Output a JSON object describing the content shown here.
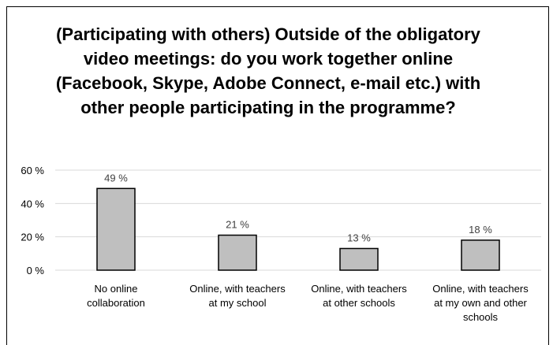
{
  "chart_data": {
    "type": "bar",
    "title": "(Participating with others) Outside of the obligatory video meetings: do you work together online (Facebook, Skype, Adobe Connect, e-mail etc.) with other people participating in the programme?",
    "categories": [
      [
        "No online",
        "collaboration"
      ],
      [
        "Online, with teachers",
        "at my school"
      ],
      [
        "Online, with teachers",
        "at other schools"
      ],
      [
        "Online, with teachers",
        "at my own and other",
        "schools"
      ]
    ],
    "values": [
      49,
      21,
      13,
      18
    ],
    "data_labels": [
      "49 %",
      "21 %",
      "13 %",
      "18 %"
    ],
    "ylim": [
      0,
      60
    ],
    "yticks": [
      0,
      20,
      40,
      60
    ],
    "ytick_labels": [
      "0 %",
      "20 %",
      "40 %",
      "60 %"
    ],
    "grid": true,
    "legend": "none",
    "bar_color": "#bfbfbf",
    "bar_edge_color": "#000000",
    "grid_color": "#d9d9d9"
  }
}
